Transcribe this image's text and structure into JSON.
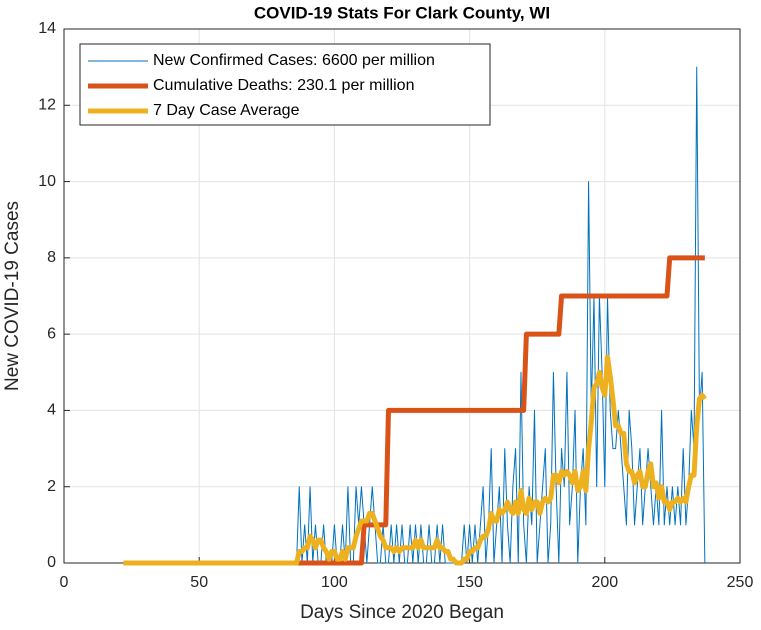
{
  "chart_data": {
    "type": "line",
    "title": "COVID-19 Stats For Clark County, WI",
    "xlabel": "Days Since 2020 Began",
    "ylabel": "New COVID-19 Cases",
    "xlim": [
      0,
      250
    ],
    "xticks": [
      0,
      50,
      100,
      150,
      200,
      250
    ],
    "ylim": [
      0,
      14
    ],
    "yticks": [
      0,
      2,
      4,
      6,
      8,
      10,
      12,
      14
    ],
    "grid": true,
    "legend": "upper left",
    "x": [
      22,
      23,
      24,
      25,
      26,
      27,
      28,
      29,
      30,
      31,
      32,
      33,
      34,
      35,
      36,
      37,
      38,
      39,
      40,
      41,
      42,
      43,
      44,
      45,
      46,
      47,
      48,
      49,
      50,
      51,
      52,
      53,
      54,
      55,
      56,
      57,
      58,
      59,
      60,
      61,
      62,
      63,
      64,
      65,
      66,
      67,
      68,
      69,
      70,
      71,
      72,
      73,
      74,
      75,
      76,
      77,
      78,
      79,
      80,
      81,
      82,
      83,
      84,
      85,
      86,
      87,
      88,
      89,
      90,
      91,
      92,
      93,
      94,
      95,
      96,
      97,
      98,
      99,
      100,
      101,
      102,
      103,
      104,
      105,
      106,
      107,
      108,
      109,
      110,
      111,
      112,
      113,
      114,
      115,
      116,
      117,
      118,
      119,
      120,
      121,
      122,
      123,
      124,
      125,
      126,
      127,
      128,
      129,
      130,
      131,
      132,
      133,
      134,
      135,
      136,
      137,
      138,
      139,
      140,
      141,
      142,
      143,
      144,
      145,
      146,
      147,
      148,
      149,
      150,
      151,
      152,
      153,
      154,
      155,
      156,
      157,
      158,
      159,
      160,
      161,
      162,
      163,
      164,
      165,
      166,
      167,
      168,
      169,
      170,
      171,
      172,
      173,
      174,
      175,
      176,
      177,
      178,
      179,
      180,
      181,
      182,
      183,
      184,
      185,
      186,
      187,
      188,
      189,
      190,
      191,
      192,
      193,
      194,
      195,
      196,
      197,
      198,
      199,
      200,
      201,
      202,
      203,
      204,
      205,
      206,
      207,
      208,
      209,
      210,
      211,
      212,
      213,
      214,
      215,
      216,
      217,
      218,
      219,
      220,
      221,
      222,
      223,
      224,
      225,
      226,
      227,
      228,
      229,
      230,
      231,
      232,
      233,
      234,
      235,
      236,
      237
    ],
    "series": [
      {
        "name": "New Confirmed Cases: 6600 per million",
        "color": "#0072bd",
        "width": 1,
        "values": [
          0,
          0,
          0,
          0,
          0,
          0,
          0,
          0,
          0,
          0,
          0,
          0,
          0,
          0,
          0,
          0,
          0,
          0,
          0,
          0,
          0,
          0,
          0,
          0,
          0,
          0,
          0,
          0,
          0,
          0,
          0,
          0,
          0,
          0,
          0,
          0,
          0,
          0,
          0,
          0,
          0,
          0,
          0,
          0,
          0,
          0,
          0,
          0,
          0,
          0,
          0,
          0,
          0,
          0,
          0,
          0,
          0,
          0,
          0,
          0,
          0,
          0,
          0,
          0,
          0,
          2,
          0,
          1,
          0,
          2,
          0,
          1,
          0,
          0,
          1,
          0,
          0,
          0,
          1,
          0,
          0,
          1,
          0,
          2,
          0,
          0,
          2,
          1,
          2,
          1,
          0,
          1,
          2,
          1,
          0,
          0,
          1,
          0,
          0,
          1,
          0,
          1,
          0,
          1,
          0,
          0,
          1,
          0,
          1,
          0,
          1,
          0,
          0,
          1,
          0,
          0,
          1,
          0,
          1,
          0,
          0,
          0,
          0,
          0,
          0,
          0,
          1,
          0,
          1,
          0,
          1,
          0,
          1,
          2,
          0,
          1,
          3,
          0,
          1,
          2,
          0,
          3,
          1,
          0,
          2,
          3,
          0,
          5,
          1,
          0,
          2,
          1,
          4,
          0,
          1,
          2,
          3,
          0,
          1,
          5,
          2,
          0,
          3,
          2,
          5,
          1,
          2,
          4,
          0,
          2,
          3,
          1,
          10,
          4,
          7,
          2,
          7,
          5,
          2,
          7,
          4,
          3,
          3,
          4,
          3,
          2,
          1,
          4,
          3,
          1,
          2,
          3,
          1,
          2,
          3,
          2,
          1,
          2,
          1,
          4,
          1,
          2,
          1,
          2,
          1,
          2,
          1,
          3,
          1,
          2,
          4,
          3,
          13,
          4,
          5,
          0
        ]
      },
      {
        "name": "Cumulative Deaths: 230.1 per million",
        "color": "#d95319",
        "width": 5,
        "values": [
          0,
          0,
          0,
          0,
          0,
          0,
          0,
          0,
          0,
          0,
          0,
          0,
          0,
          0,
          0,
          0,
          0,
          0,
          0,
          0,
          0,
          0,
          0,
          0,
          0,
          0,
          0,
          0,
          0,
          0,
          0,
          0,
          0,
          0,
          0,
          0,
          0,
          0,
          0,
          0,
          0,
          0,
          0,
          0,
          0,
          0,
          0,
          0,
          0,
          0,
          0,
          0,
          0,
          0,
          0,
          0,
          0,
          0,
          0,
          0,
          0,
          0,
          0,
          0,
          0,
          0,
          0,
          0,
          0,
          0,
          0,
          0,
          0,
          0,
          0,
          0,
          0,
          0,
          0,
          0,
          0,
          0,
          0,
          0,
          0,
          0,
          0,
          0,
          0,
          1,
          1,
          1,
          1,
          1,
          1,
          1,
          1,
          1,
          4,
          4,
          4,
          4,
          4,
          4,
          4,
          4,
          4,
          4,
          4,
          4,
          4,
          4,
          4,
          4,
          4,
          4,
          4,
          4,
          4,
          4,
          4,
          4,
          4,
          4,
          4,
          4,
          4,
          4,
          4,
          4,
          4,
          4,
          4,
          4,
          4,
          4,
          4,
          4,
          4,
          4,
          4,
          4,
          4,
          4,
          4,
          4,
          4,
          4,
          4,
          6,
          6,
          6,
          6,
          6,
          6,
          6,
          6,
          6,
          6,
          6,
          6,
          6,
          7,
          7,
          7,
          7,
          7,
          7,
          7,
          7,
          7,
          7,
          7,
          7,
          7,
          7,
          7,
          7,
          7,
          7,
          7,
          7,
          7,
          7,
          7,
          7,
          7,
          7,
          7,
          7,
          7,
          7,
          7,
          7,
          7,
          7,
          7,
          7,
          7,
          7,
          7,
          7,
          8,
          8,
          8,
          8,
          8,
          8,
          8,
          8,
          8,
          8,
          8,
          8,
          8,
          8
        ]
      },
      {
        "name": "7 Day Case Average",
        "color": "#edb120",
        "width": 5,
        "values": [
          0,
          0,
          0,
          0,
          0,
          0,
          0,
          0,
          0,
          0,
          0,
          0,
          0,
          0,
          0,
          0,
          0,
          0,
          0,
          0,
          0,
          0,
          0,
          0,
          0,
          0,
          0,
          0,
          0,
          0,
          0,
          0,
          0,
          0,
          0,
          0,
          0,
          0,
          0,
          0,
          0,
          0,
          0,
          0,
          0,
          0,
          0,
          0,
          0,
          0,
          0,
          0,
          0,
          0,
          0,
          0,
          0,
          0,
          0,
          0,
          0,
          0,
          0,
          0,
          0,
          0.3,
          0.3,
          0.4,
          0.4,
          0.7,
          0.6,
          0.4,
          0.6,
          0.6,
          0.4,
          0.3,
          0.1,
          0.3,
          0.3,
          0.1,
          0.1,
          0.3,
          0.1,
          0.4,
          0.4,
          0.4,
          0.7,
          0.9,
          1.1,
          1.1,
          1.1,
          1.3,
          1.3,
          1.1,
          0.9,
          0.7,
          0.6,
          0.4,
          0.4,
          0.4,
          0.3,
          0.4,
          0.3,
          0.4,
          0.4,
          0.4,
          0.4,
          0.4,
          0.6,
          0.4,
          0.6,
          0.4,
          0.4,
          0.4,
          0.4,
          0.4,
          0.6,
          0.4,
          0.4,
          0.3,
          0.3,
          0.1,
          0.1,
          0,
          0,
          0,
          0.1,
          0.1,
          0.3,
          0.3,
          0.4,
          0.4,
          0.6,
          0.7,
          0.7,
          0.9,
          1.3,
          1.1,
          1.1,
          1.4,
          1.3,
          1.4,
          1.6,
          1.4,
          1.3,
          1.6,
          1.3,
          1.9,
          1.4,
          1.3,
          1.7,
          1.4,
          1.6,
          1.6,
          1.3,
          1.6,
          1.7,
          1.6,
          1.7,
          2.3,
          2.3,
          2.1,
          2.4,
          2.3,
          2.4,
          2.3,
          2.1,
          2.4,
          1.9,
          2,
          2.4,
          1.9,
          3,
          3.7,
          4.6,
          4.7,
          5,
          4.6,
          4.4,
          5.4,
          4.9,
          4.3,
          3.6,
          3.6,
          3.4,
          3.4,
          2.6,
          2.4,
          2.4,
          2.1,
          2.3,
          2.4,
          2,
          2,
          2.4,
          2.6,
          2,
          2.1,
          1.7,
          2,
          1.6,
          1.6,
          1.4,
          1.6,
          1.6,
          1.7,
          1.6,
          1.7,
          1.6,
          2,
          2.3,
          2.3,
          3.6,
          4.3,
          4.4,
          4.3
        ]
      }
    ]
  }
}
